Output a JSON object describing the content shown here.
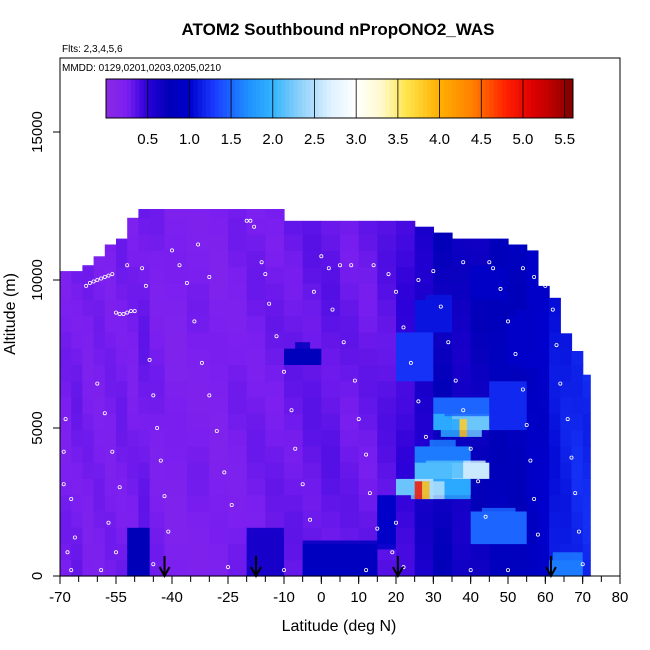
{
  "chart_data": {
    "type": "heatmap",
    "title": "ATOM2 Southbound nPropONO2_WAS",
    "flights_text": "Flts: 2,3,4,5,6",
    "dates_text": "MMDD: 0129,0201,0203,0205,0210",
    "xlabel": "Latitude (deg N)",
    "ylabel": "Altitude (m)",
    "xlim": [
      -70,
      80
    ],
    "ylim": [
      0,
      17500
    ],
    "x_ticks": [
      -70,
      -55,
      -40,
      -25,
      -10,
      0,
      10,
      20,
      30,
      40,
      50,
      60,
      70,
      80
    ],
    "x_ticklabels": [
      "-70",
      "-55",
      "-40",
      "-25",
      "-10",
      "0",
      "10",
      "20",
      "30",
      "40",
      "50",
      "60",
      "70",
      "80"
    ],
    "x_minor_step": 5,
    "y_ticks": [
      0,
      5000,
      10000,
      15000
    ],
    "y_ticklabels": [
      "0",
      "5000",
      "10000",
      "15000"
    ],
    "colorbar": {
      "range": [
        0,
        5.6
      ],
      "ticks": [
        0.5,
        1.0,
        1.5,
        2.0,
        2.5,
        3.0,
        3.5,
        4.0,
        4.5,
        5.0,
        5.5
      ],
      "ticklabels": [
        "0.5",
        "1.0",
        "1.5",
        "2.0",
        "2.5",
        "3.0",
        "3.5",
        "4.0",
        "4.5",
        "5.0",
        "5.5"
      ],
      "color_stops": [
        {
          "v": 0.0,
          "c": "#8a2be2"
        },
        {
          "v": 0.25,
          "c": "#7b1ff0"
        },
        {
          "v": 0.5,
          "c": "#2a00d8"
        },
        {
          "v": 0.75,
          "c": "#0000b8"
        },
        {
          "v": 1.0,
          "c": "#0000cd"
        },
        {
          "v": 1.3,
          "c": "#1a3cff"
        },
        {
          "v": 1.7,
          "c": "#1e90ff"
        },
        {
          "v": 2.0,
          "c": "#33b4ff"
        },
        {
          "v": 2.3,
          "c": "#87cefa"
        },
        {
          "v": 2.7,
          "c": "#e0f2ff"
        },
        {
          "v": 3.0,
          "c": "#ffffff"
        },
        {
          "v": 3.3,
          "c": "#fffacd"
        },
        {
          "v": 3.6,
          "c": "#ffe54d"
        },
        {
          "v": 4.0,
          "c": "#ffb000"
        },
        {
          "v": 4.4,
          "c": "#ff7f00"
        },
        {
          "v": 4.8,
          "c": "#ff2000"
        },
        {
          "v": 5.1,
          "c": "#e00000"
        },
        {
          "v": 5.4,
          "c": "#b00000"
        },
        {
          "v": 5.6,
          "c": "#7a0000"
        }
      ]
    },
    "profile_columns": [
      {
        "lat_range": [
          -70,
          -67
        ],
        "top": 10300,
        "base": 0.25
      },
      {
        "lat_range": [
          -67,
          -64
        ],
        "top": 10300,
        "base": 0.28
      },
      {
        "lat_range": [
          -64,
          -61
        ],
        "top": 10500,
        "base": 0.25
      },
      {
        "lat_range": [
          -61,
          -58
        ],
        "top": 10800,
        "base": 0.25
      },
      {
        "lat_range": [
          -58,
          -55
        ],
        "top": 11200,
        "base": 0.25
      },
      {
        "lat_range": [
          -55,
          -52
        ],
        "top": 11400,
        "base": 0.27
      },
      {
        "lat_range": [
          -52,
          -49
        ],
        "top": 12100,
        "base": 0.25
      },
      {
        "lat_range": [
          -49,
          -46
        ],
        "top": 12400,
        "base": 0.3
      },
      {
        "lat_range": [
          -46,
          -42
        ],
        "top": 12400,
        "base": 0.25
      },
      {
        "lat_range": [
          -42,
          -36
        ],
        "top": 12400,
        "base": 0.22
      },
      {
        "lat_range": [
          -36,
          -30
        ],
        "top": 12400,
        "base": 0.24
      },
      {
        "lat_range": [
          -30,
          -25
        ],
        "top": 12400,
        "base": 0.22
      },
      {
        "lat_range": [
          -25,
          -20
        ],
        "top": 12400,
        "base": 0.25
      },
      {
        "lat_range": [
          -20,
          -15
        ],
        "top": 12400,
        "base": 0.27
      },
      {
        "lat_range": [
          -15,
          -10
        ],
        "top": 12400,
        "base": 0.28
      },
      {
        "lat_range": [
          -10,
          -5
        ],
        "top": 12000,
        "base": 0.3
      },
      {
        "lat_range": [
          -5,
          0
        ],
        "top": 12000,
        "base": 0.32
      },
      {
        "lat_range": [
          0,
          5
        ],
        "top": 12000,
        "base": 0.33
      },
      {
        "lat_range": [
          5,
          10
        ],
        "top": 12000,
        "base": 0.3
      },
      {
        "lat_range": [
          10,
          15
        ],
        "top": 12000,
        "base": 0.3
      },
      {
        "lat_range": [
          15,
          20
        ],
        "top": 12000,
        "base": 0.35
      },
      {
        "lat_range": [
          20,
          25
        ],
        "top": 12000,
        "base": 0.45
      },
      {
        "lat_range": [
          25,
          30
        ],
        "top": 11800,
        "base": 0.6
      },
      {
        "lat_range": [
          30,
          35
        ],
        "top": 11600,
        "base": 0.7
      },
      {
        "lat_range": [
          35,
          40
        ],
        "top": 11400,
        "base": 0.65
      },
      {
        "lat_range": [
          40,
          45
        ],
        "top": 11400,
        "base": 0.7
      },
      {
        "lat_range": [
          45,
          50
        ],
        "top": 11400,
        "base": 0.8
      },
      {
        "lat_range": [
          50,
          55
        ],
        "top": 11200,
        "base": 0.8
      },
      {
        "lat_range": [
          55,
          58
        ],
        "top": 11000,
        "base": 0.9
      },
      {
        "lat_range": [
          58,
          61
        ],
        "top": 9800,
        "base": 0.95
      },
      {
        "lat_range": [
          61,
          64
        ],
        "top": 9400,
        "base": 1.1
      },
      {
        "lat_range": [
          64,
          67
        ],
        "top": 8200,
        "base": 1.15
      },
      {
        "lat_range": [
          67,
          70
        ],
        "top": 7600,
        "base": 1.2
      },
      {
        "lat_range": [
          70,
          72
        ],
        "top": 6800,
        "base": 1.2
      }
    ],
    "anomalies": [
      {
        "lat_range": [
          -51,
          -46
        ],
        "alt_range": [
          0,
          1500
        ],
        "value": 0.75
      },
      {
        "lat_range": [
          -20,
          -10
        ],
        "alt_range": [
          0,
          1400
        ],
        "value": 0.6
      },
      {
        "lat_range": [
          -5,
          15
        ],
        "alt_range": [
          0,
          1200
        ],
        "value": 0.85
      },
      {
        "lat_range": [
          -7,
          -3
        ],
        "alt_range": [
          7400,
          7900
        ],
        "value": 0.8
      },
      {
        "lat_range": [
          15,
          20
        ],
        "alt_range": [
          900,
          2500
        ],
        "value": 0.95
      },
      {
        "lat_range": [
          22,
          26
        ],
        "alt_range": [
          6800,
          8200
        ],
        "value": 1.25
      },
      {
        "lat_range": [
          24,
          30
        ],
        "alt_range": [
          2600,
          3200
        ],
        "value": 2.2
      },
      {
        "lat_range": [
          25,
          27
        ],
        "alt_range": [
          2600,
          3200
        ],
        "value": 4.9
      },
      {
        "lat_range": [
          27,
          29
        ],
        "alt_range": [
          2600,
          3200
        ],
        "value": 3.9
      },
      {
        "lat_range": [
          29,
          33
        ],
        "alt_range": [
          2600,
          3200
        ],
        "value": 2.5
      },
      {
        "lat_range": [
          33,
          40
        ],
        "alt_range": [
          2600,
          3200
        ],
        "value": 1.9
      },
      {
        "lat_range": [
          28,
          38
        ],
        "alt_range": [
          3300,
          3900
        ],
        "value": 2.1
      },
      {
        "lat_range": [
          38,
          44
        ],
        "alt_range": [
          3300,
          3900
        ],
        "value": 2.6
      },
      {
        "lat_range": [
          29,
          36
        ],
        "alt_range": [
          4000,
          4600
        ],
        "value": 1.6
      },
      {
        "lat_range": [
          32,
          37
        ],
        "alt_range": [
          4700,
          5300
        ],
        "value": 1.9
      },
      {
        "lat_range": [
          37,
          39
        ],
        "alt_range": [
          4700,
          5300
        ],
        "value": 3.8
      },
      {
        "lat_range": [
          39,
          43
        ],
        "alt_range": [
          4700,
          5300
        ],
        "value": 2.2
      },
      {
        "lat_range": [
          33,
          45
        ],
        "alt_range": [
          5400,
          5900
        ],
        "value": 1.5
      },
      {
        "lat_range": [
          43,
          52
        ],
        "alt_range": [
          1200,
          2300
        ],
        "value": 1.5
      },
      {
        "lat_range": [
          45,
          55
        ],
        "alt_range": [
          5000,
          6500
        ],
        "value": 1.2
      },
      {
        "lat_range": [
          28,
          35
        ],
        "alt_range": [
          8500,
          9500
        ],
        "value": 1.1
      },
      {
        "lat_range": [
          40,
          48
        ],
        "alt_range": [
          9500,
          10500
        ],
        "value": 0.9
      },
      {
        "lat_range": [
          52,
          58
        ],
        "alt_range": [
          7000,
          9000
        ],
        "value": 0.95
      },
      {
        "lat_range": [
          62,
          70
        ],
        "alt_range": [
          0,
          800
        ],
        "value": 1.6
      }
    ],
    "observation_points": [
      [
        -69,
        4200
      ],
      [
        -68.5,
        5300
      ],
      [
        -69,
        3100
      ],
      [
        -67,
        2600
      ],
      [
        -66,
        1300
      ],
      [
        -68,
        800
      ],
      [
        -67,
        200
      ],
      [
        -63,
        9800
      ],
      [
        -62,
        9900
      ],
      [
        -61,
        9950
      ],
      [
        -60,
        10000
      ],
      [
        -59,
        10050
      ],
      [
        -58,
        10100
      ],
      [
        -57,
        10150
      ],
      [
        -56,
        10200
      ],
      [
        -55,
        8900
      ],
      [
        -54,
        8850
      ],
      [
        -53,
        8850
      ],
      [
        -52,
        8900
      ],
      [
        -51,
        8950
      ],
      [
        -50,
        8950
      ],
      [
        -60,
        6500
      ],
      [
        -58,
        5500
      ],
      [
        -56,
        4200
      ],
      [
        -54,
        3000
      ],
      [
        -57,
        1800
      ],
      [
        -55,
        800
      ],
      [
        -59,
        200
      ],
      [
        -48,
        10400
      ],
      [
        -47,
        9800
      ],
      [
        -46,
        7300
      ],
      [
        -45,
        6100
      ],
      [
        -44,
        5000
      ],
      [
        -43,
        3900
      ],
      [
        -42,
        2700
      ],
      [
        -41,
        1500
      ],
      [
        -45,
        400
      ],
      [
        -40,
        11000
      ],
      [
        -38,
        10500
      ],
      [
        -36,
        9900
      ],
      [
        -34,
        8600
      ],
      [
        -32,
        7200
      ],
      [
        -30,
        6100
      ],
      [
        -28,
        4900
      ],
      [
        -26,
        3500
      ],
      [
        -24,
        2400
      ],
      [
        -25,
        300
      ],
      [
        -20,
        12000
      ],
      [
        -18,
        11800
      ],
      [
        -19,
        12000
      ],
      [
        -16,
        10600
      ],
      [
        -14,
        9200
      ],
      [
        -12,
        8100
      ],
      [
        -10,
        6900
      ],
      [
        -8,
        5600
      ],
      [
        -7,
        4300
      ],
      [
        -5,
        3100
      ],
      [
        -3,
        1900
      ],
      [
        -10,
        200
      ],
      [
        0,
        10800
      ],
      [
        2,
        10400
      ],
      [
        5,
        10500
      ],
      [
        8,
        10500
      ],
      [
        3,
        9000
      ],
      [
        6,
        7900
      ],
      [
        9,
        6600
      ],
      [
        10,
        5300
      ],
      [
        12,
        4100
      ],
      [
        13,
        2800
      ],
      [
        15,
        1600
      ],
      [
        12,
        200
      ],
      [
        18,
        10200
      ],
      [
        20,
        9600
      ],
      [
        22,
        8400
      ],
      [
        24,
        7200
      ],
      [
        26,
        5900
      ],
      [
        28,
        4700
      ],
      [
        20,
        1800
      ],
      [
        19,
        800
      ],
      [
        22,
        300
      ],
      [
        30,
        10300
      ],
      [
        32,
        9100
      ],
      [
        34,
        7900
      ],
      [
        36,
        6600
      ],
      [
        38,
        5600
      ],
      [
        40,
        4300
      ],
      [
        42,
        3200
      ],
      [
        44,
        2000
      ],
      [
        40,
        200
      ],
      [
        46,
        10400
      ],
      [
        48,
        9700
      ],
      [
        50,
        8600
      ],
      [
        52,
        7500
      ],
      [
        54,
        6300
      ],
      [
        55,
        5100
      ],
      [
        56,
        3900
      ],
      [
        57,
        2600
      ],
      [
        58,
        1400
      ],
      [
        50,
        200
      ],
      [
        60,
        9800
      ],
      [
        62,
        9000
      ],
      [
        63,
        7800
      ],
      [
        64,
        6500
      ],
      [
        66,
        5300
      ],
      [
        67,
        4000
      ],
      [
        68,
        2800
      ],
      [
        69,
        1500
      ],
      [
        70,
        400
      ],
      [
        57,
        10100
      ],
      [
        54,
        10400
      ],
      [
        45,
        10600
      ],
      [
        38,
        10600
      ],
      [
        -52,
        10500
      ],
      [
        -30,
        10100
      ],
      [
        -33,
        11200
      ],
      [
        -15,
        10200
      ],
      [
        -2,
        9600
      ],
      [
        14,
        10500
      ],
      [
        26,
        10000
      ]
    ],
    "arrows_lat": [
      -42,
      -17.5,
      20.5,
      61.5
    ]
  }
}
